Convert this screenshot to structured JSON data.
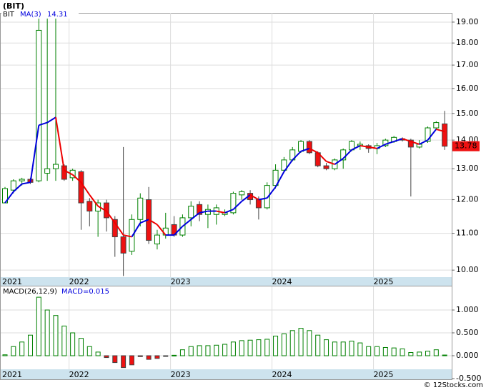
{
  "header": "(BIT)",
  "footer": "© 12Stocks.com",
  "chart_data": [
    {
      "type": "candlestick",
      "log": true,
      "grid": true,
      "categories": [
        "2021",
        null,
        null,
        null,
        null,
        null,
        null,
        null,
        "2022",
        null,
        null,
        null,
        null,
        null,
        null,
        null,
        null,
        null,
        null,
        null,
        "2023",
        null,
        null,
        null,
        null,
        null,
        null,
        null,
        null,
        null,
        null,
        null,
        "2024",
        null,
        null,
        null,
        null,
        null,
        null,
        null,
        null,
        null,
        null,
        null,
        "2025",
        null,
        null,
        null,
        null,
        null,
        null,
        null,
        null
      ],
      "ylim": [
        9.82,
        19.46
      ],
      "yticks": [
        {
          "value": 10,
          "label": "10.00"
        },
        {
          "value": 11,
          "label": "11.00"
        },
        {
          "value": 12,
          "label": "12.00"
        },
        {
          "value": 13,
          "label": "13.00"
        },
        {
          "value": 14,
          "label": "14.00"
        },
        {
          "value": 15,
          "label": "15.00"
        },
        {
          "value": 16,
          "label": "16.00"
        },
        {
          "value": 17,
          "label": "17.00"
        },
        {
          "value": 18,
          "label": "18.00"
        },
        {
          "value": 19,
          "label": "19.00"
        }
      ],
      "series": [
        {
          "name": "BIT",
          "up_color": "#008000",
          "down_color": "#ee1111",
          "open": [
            11.9,
            12.3,
            12.6,
            12.65,
            12.6,
            12.85,
            13.0,
            13.1,
            12.7,
            12.9,
            11.95,
            11.65,
            11.9,
            11.4,
            10.9,
            10.5,
            11.4,
            12.0,
            10.7,
            10.95,
            11.25,
            10.95,
            11.45,
            11.85,
            11.55,
            11.55,
            11.55,
            11.6,
            12.15,
            12.2,
            12.0,
            11.75,
            12.45,
            12.95,
            13.3,
            13.6,
            13.95,
            13.55,
            13.1,
            13.0,
            13.3,
            13.65,
            13.8,
            13.8,
            13.7,
            13.8,
            13.95,
            14.05,
            14.0,
            13.75,
            13.95,
            14.45,
            14.6
          ],
          "high": [
            12.4,
            12.65,
            12.7,
            12.7,
            19.4,
            19.3,
            19.3,
            13.15,
            13.0,
            12.95,
            12.05,
            12.0,
            12.0,
            11.5,
            13.75,
            11.55,
            12.2,
            12.4,
            11.1,
            11.6,
            11.5,
            11.55,
            11.95,
            11.95,
            11.85,
            11.85,
            11.7,
            12.25,
            12.3,
            12.3,
            12.1,
            12.55,
            13.15,
            13.4,
            13.75,
            14.0,
            14.0,
            13.6,
            13.2,
            13.35,
            13.7,
            14.0,
            13.95,
            13.85,
            13.9,
            14.05,
            14.15,
            14.1,
            14.05,
            14.0,
            14.5,
            14.7,
            15.1
          ],
          "low": [
            11.9,
            12.2,
            12.45,
            12.5,
            12.55,
            12.6,
            12.6,
            12.6,
            12.6,
            11.1,
            11.2,
            10.9,
            11.05,
            10.35,
            9.85,
            10.4,
            11.2,
            10.7,
            10.55,
            10.85,
            10.9,
            10.9,
            11.2,
            11.35,
            11.15,
            11.25,
            11.5,
            11.55,
            12.0,
            11.85,
            11.4,
            11.7,
            12.35,
            12.9,
            13.25,
            13.55,
            13.5,
            13.05,
            12.95,
            12.95,
            13.0,
            13.6,
            13.65,
            13.55,
            13.5,
            13.75,
            13.9,
            13.95,
            12.1,
            13.7,
            13.9,
            14.4,
            13.65
          ],
          "close": [
            12.35,
            12.6,
            12.65,
            12.55,
            18.6,
            13.0,
            13.15,
            12.65,
            12.95,
            11.9,
            11.65,
            11.9,
            11.45,
            10.9,
            10.45,
            11.4,
            12.05,
            10.8,
            10.95,
            11.15,
            10.95,
            11.45,
            11.8,
            11.55,
            11.7,
            11.75,
            11.6,
            12.2,
            12.25,
            12.0,
            11.75,
            12.45,
            12.95,
            13.3,
            13.65,
            13.95,
            13.55,
            13.1,
            13.0,
            13.3,
            13.65,
            13.95,
            13.85,
            13.7,
            13.8,
            14.0,
            14.1,
            14.0,
            13.75,
            13.85,
            14.45,
            14.65,
            13.78
          ]
        },
        {
          "name": "MA(3)",
          "color": "#0000dd",
          "down_color": "#ee0000",
          "values": [
            11.9,
            12.25,
            12.5,
            12.55,
            14.55,
            14.65,
            14.85,
            12.95,
            12.8,
            12.55,
            12.15,
            11.8,
            11.65,
            11.3,
            10.95,
            10.9,
            11.3,
            11.4,
            11.25,
            10.95,
            10.95,
            11.2,
            11.4,
            11.6,
            11.65,
            11.65,
            11.6,
            11.7,
            11.95,
            12.15,
            12.0,
            12.05,
            12.4,
            12.9,
            13.3,
            13.6,
            13.7,
            13.55,
            13.25,
            13.15,
            13.35,
            13.65,
            13.8,
            13.75,
            13.7,
            13.85,
            13.95,
            14.05,
            13.95,
            13.85,
            14.0,
            14.4,
            14.31
          ]
        }
      ]
    },
    {
      "type": "histogram-bar",
      "grid": true,
      "legend": "MACD(26,12,9)",
      "value_label": "MACD=0.015",
      "categories": [
        "2021",
        null,
        null,
        null,
        null,
        null,
        null,
        null,
        "2022",
        null,
        null,
        null,
        null,
        null,
        null,
        null,
        null,
        null,
        null,
        null,
        "2023",
        null,
        null,
        null,
        null,
        null,
        null,
        null,
        null,
        null,
        null,
        null,
        "2024",
        null,
        null,
        null,
        null,
        null,
        null,
        null,
        null,
        null,
        null,
        null,
        "2025",
        null,
        null,
        null,
        null,
        null,
        null,
        null,
        null
      ],
      "ylim": [
        -0.297,
        1.516
      ],
      "yticks": [
        {
          "value": -0.5,
          "label": "-0.500"
        },
        {
          "value": 0,
          "label": "0.000"
        },
        {
          "value": 0.5,
          "label": "0.500"
        },
        {
          "value": 1,
          "label": "1.000"
        }
      ],
      "series": [
        {
          "name": "MACD",
          "color": "#008000",
          "down_color": "#ee1111",
          "values": [
            0.02,
            0.2,
            0.3,
            0.45,
            1.28,
            1.0,
            0.88,
            0.65,
            0.5,
            0.38,
            0.2,
            0.08,
            -0.04,
            -0.15,
            -0.26,
            -0.2,
            -0.02,
            -0.08,
            -0.06,
            -0.01,
            0.01,
            0.13,
            0.2,
            0.22,
            0.22,
            0.23,
            0.25,
            0.3,
            0.33,
            0.34,
            0.35,
            0.36,
            0.43,
            0.48,
            0.55,
            0.6,
            0.55,
            0.45,
            0.35,
            0.3,
            0.3,
            0.32,
            0.28,
            0.2,
            0.2,
            0.18,
            0.17,
            0.15,
            0.07,
            0.08,
            0.1,
            0.13,
            0.015
          ]
        }
      ]
    }
  ]
}
